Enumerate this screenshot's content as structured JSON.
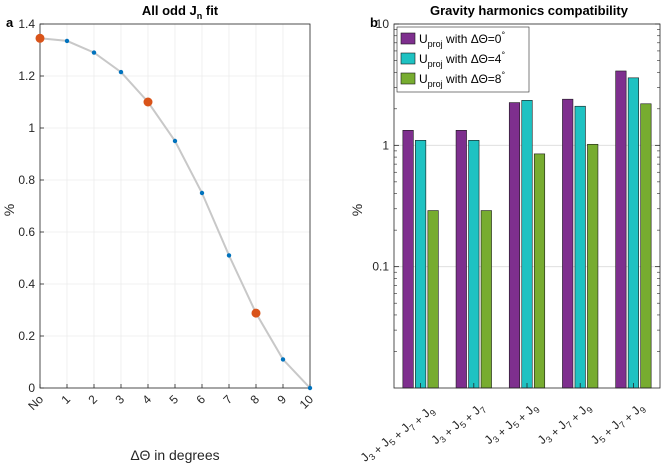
{
  "chart_data": [
    {
      "panel_label": "a",
      "type": "line",
      "title_main": "All odd J",
      "title_sub": "n",
      "title_end": " fit",
      "xlabel": "ΔΘ in degrees",
      "ylabel": "%",
      "categories": [
        "No",
        "1",
        "2",
        "3",
        "4",
        "5",
        "6",
        "7",
        "8",
        "9",
        "10"
      ],
      "values": [
        1.345,
        1.335,
        1.29,
        1.215,
        1.1,
        0.95,
        0.75,
        0.51,
        0.288,
        0.11,
        0.0
      ],
      "highlighted_indices": [
        0,
        4,
        8
      ],
      "ylim": [
        0,
        1.4
      ],
      "yticks": [
        "0",
        "0.2",
        "0.4",
        "0.6",
        "0.8",
        "1",
        "1.2",
        "1.4"
      ],
      "ytick_values": [
        0,
        0.2,
        0.4,
        0.6,
        0.8,
        1.0,
        1.2,
        1.4
      ],
      "grid": true,
      "colors": {
        "line": "#c8c8c8",
        "point": "#0072bd",
        "highlight": "#d95319"
      }
    },
    {
      "panel_label": "b",
      "type": "bar",
      "scale": "log",
      "title": "Gravity harmonics compatibility",
      "ylabel": "%",
      "ylim": [
        0.01,
        10
      ],
      "yticks": [
        "0.1",
        "1",
        "10"
      ],
      "ytick_values": [
        0.1,
        1,
        10
      ],
      "categories": [
        {
          "terms": [
            "J3",
            "J5",
            "J7",
            "J9"
          ],
          "parts": [
            [
              "J",
              "3"
            ],
            [
              "J",
              "5"
            ],
            [
              "J",
              "7"
            ],
            [
              "J",
              "9"
            ]
          ]
        },
        {
          "terms": [
            "J3",
            "J5",
            "J7"
          ],
          "parts": [
            [
              "J",
              "3"
            ],
            [
              "J",
              "5"
            ],
            [
              "J",
              "7"
            ]
          ]
        },
        {
          "terms": [
            "J3",
            "J5",
            "J9"
          ],
          "parts": [
            [
              "J",
              "3"
            ],
            [
              "J",
              "5"
            ],
            [
              "J",
              "9"
            ]
          ]
        },
        {
          "terms": [
            "J3",
            "J7",
            "J9"
          ],
          "parts": [
            [
              "J",
              "3"
            ],
            [
              "J",
              "7"
            ],
            [
              "J",
              "9"
            ]
          ]
        },
        {
          "terms": [
            "J5",
            "J7",
            "J9"
          ],
          "parts": [
            [
              "J",
              "5"
            ],
            [
              "J",
              "7"
            ],
            [
              "J",
              "9"
            ]
          ]
        }
      ],
      "series": [
        {
          "name": "Uproj with ΔΘ=0°",
          "main": "U",
          "sub": "proj",
          "rest": " with ΔΘ=0",
          "sup": "°",
          "color": "#7e2f8e",
          "values": [
            1.33,
            1.33,
            2.25,
            2.4,
            4.1
          ]
        },
        {
          "name": "Uproj with ΔΘ=4°",
          "main": "U",
          "sub": "proj",
          "rest": " with ΔΘ=4",
          "sup": "°",
          "color": "#1ec2c2",
          "values": [
            1.1,
            1.1,
            2.35,
            2.1,
            3.6
          ]
        },
        {
          "name": "Uproj with ΔΘ=8°",
          "main": "U",
          "sub": "proj",
          "rest": " with ΔΘ=8",
          "sup": "°",
          "color": "#77ac30",
          "values": [
            0.29,
            0.29,
            0.85,
            1.02,
            2.2
          ]
        }
      ]
    }
  ]
}
